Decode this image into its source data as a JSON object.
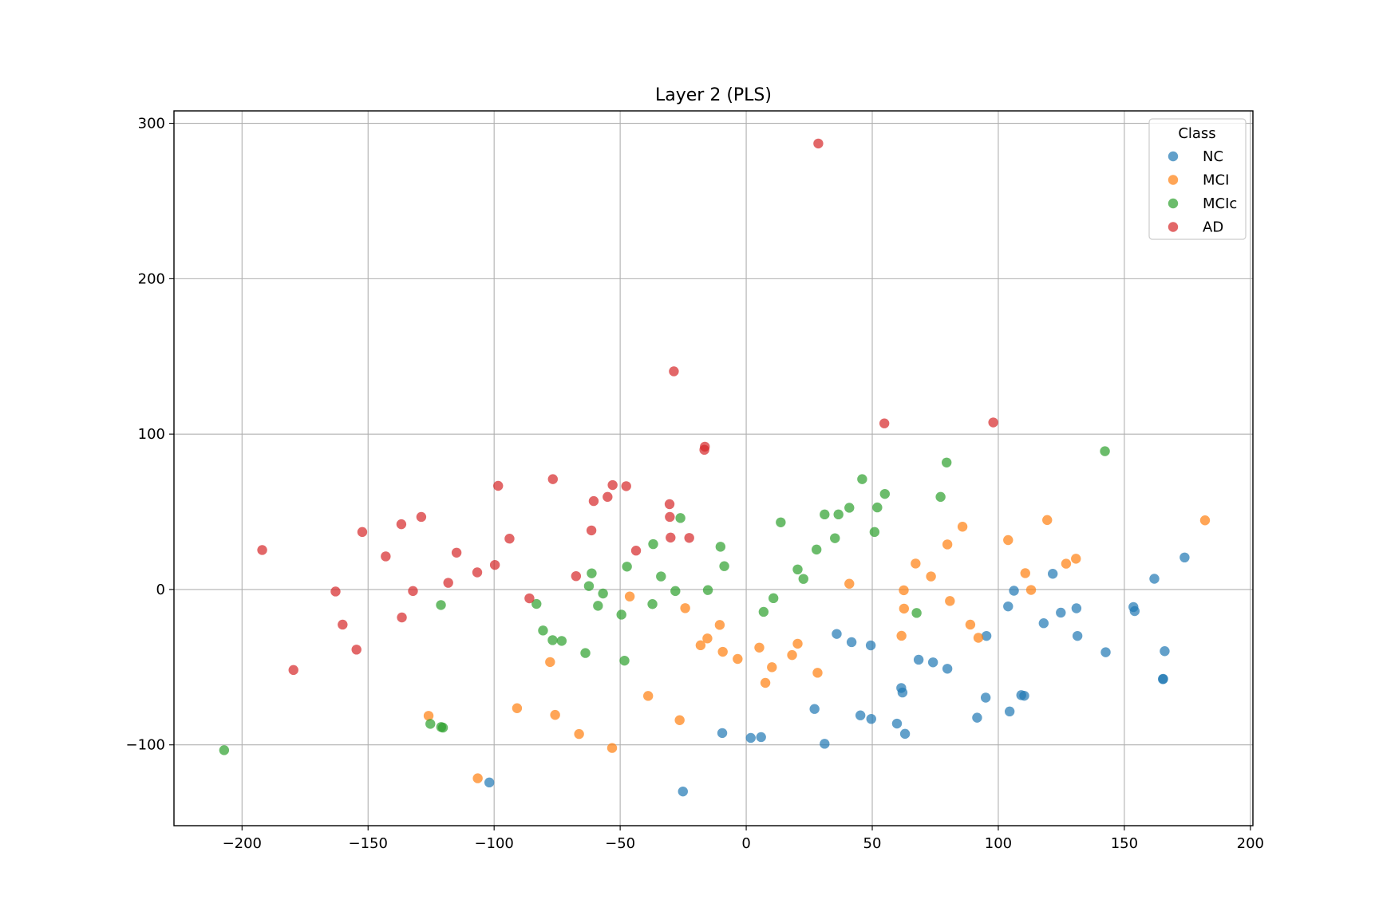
{
  "chart_data": {
    "type": "scatter",
    "title": "Layer 2 (PLS)",
    "xlabel": "",
    "ylabel": "",
    "xlim": [
      -227,
      201
    ],
    "ylim": [
      -152,
      308
    ],
    "xticks": [
      -200,
      -150,
      -100,
      -50,
      0,
      50,
      100,
      150,
      200
    ],
    "yticks": [
      -100,
      0,
      100,
      200,
      300
    ],
    "xtick_labels": [
      "−200",
      "−150",
      "−100",
      "−50",
      "0",
      "50",
      "100",
      "150",
      "200"
    ],
    "ytick_labels": [
      "−100",
      "0",
      "100",
      "200",
      "300"
    ],
    "grid": true,
    "legend": {
      "title": "Class",
      "position": "top-right"
    },
    "series": [
      {
        "name": "NC",
        "color": "#1f77b4",
        "points": [
          [
            173.9,
            20.6
          ],
          [
            161.9,
            6.9
          ],
          [
            154.1,
            -13.9
          ],
          [
            153.6,
            -11.3
          ],
          [
            166.0,
            -39.7
          ],
          [
            165.3,
            -57.7
          ],
          [
            165.4,
            -57.5
          ],
          [
            142.6,
            -40.4
          ],
          [
            121.6,
            10.1
          ],
          [
            131.0,
            -12.1
          ],
          [
            124.8,
            -14.9
          ],
          [
            131.4,
            -29.9
          ],
          [
            118.0,
            -21.7
          ],
          [
            106.2,
            -0.8
          ],
          [
            103.9,
            -10.9
          ],
          [
            95.3,
            -29.9
          ],
          [
            95.0,
            -69.6
          ],
          [
            91.6,
            -82.5
          ],
          [
            104.5,
            -78.5
          ],
          [
            109.1,
            -68.0
          ],
          [
            110.3,
            -68.4
          ],
          [
            79.8,
            -51.0
          ],
          [
            74.1,
            -46.9
          ],
          [
            68.4,
            -45.2
          ],
          [
            61.5,
            -63.4
          ],
          [
            62.0,
            -66.3
          ],
          [
            59.8,
            -86.3
          ],
          [
            63.0,
            -92.9
          ],
          [
            49.4,
            -36.0
          ],
          [
            41.8,
            -33.9
          ],
          [
            35.9,
            -28.6
          ],
          [
            45.3,
            -81.0
          ],
          [
            49.6,
            -83.3
          ],
          [
            27.1,
            -76.9
          ],
          [
            31.1,
            -99.3
          ],
          [
            1.8,
            -95.5
          ],
          [
            5.9,
            -95.0
          ],
          [
            -9.5,
            -92.4
          ],
          [
            -25.1,
            -130.0
          ],
          [
            -101.9,
            -124.2
          ]
        ]
      },
      {
        "name": "MCI",
        "color": "#ff7f0e",
        "points": [
          [
            182.0,
            44.5
          ],
          [
            119.4,
            44.7
          ],
          [
            130.8,
            19.8
          ],
          [
            126.9,
            16.6
          ],
          [
            103.9,
            31.8
          ],
          [
            110.7,
            10.5
          ],
          [
            113.0,
            -0.3
          ],
          [
            85.8,
            40.4
          ],
          [
            79.8,
            29.0
          ],
          [
            73.3,
            8.4
          ],
          [
            67.2,
            16.7
          ],
          [
            80.8,
            -7.4
          ],
          [
            88.9,
            -22.6
          ],
          [
            92.1,
            -31.1
          ],
          [
            62.5,
            -0.5
          ],
          [
            62.6,
            -12.3
          ],
          [
            61.6,
            -29.8
          ],
          [
            40.9,
            3.7
          ],
          [
            28.3,
            -53.6
          ],
          [
            20.4,
            -34.9
          ],
          [
            18.2,
            -42.2
          ],
          [
            10.2,
            -50.0
          ],
          [
            7.6,
            -60.1
          ],
          [
            5.2,
            -37.4
          ],
          [
            -3.4,
            -44.7
          ],
          [
            -9.3,
            -40.1
          ],
          [
            -10.5,
            -22.8
          ],
          [
            -15.4,
            -31.5
          ],
          [
            -18.1,
            -35.9
          ],
          [
            -24.2,
            -12.0
          ],
          [
            -26.4,
            -84.1
          ],
          [
            -38.9,
            -68.5
          ],
          [
            -46.2,
            -4.5
          ],
          [
            -53.2,
            -102.0
          ],
          [
            -66.3,
            -93.0
          ],
          [
            -75.8,
            -80.7
          ],
          [
            -77.8,
            -46.7
          ],
          [
            -90.9,
            -76.4
          ],
          [
            -106.5,
            -121.5
          ],
          [
            -126.0,
            -81.3
          ]
        ]
      },
      {
        "name": "MCIc",
        "color": "#2ca02c",
        "points": [
          [
            142.3,
            89.0
          ],
          [
            79.5,
            81.7
          ],
          [
            77.1,
            59.6
          ],
          [
            55.0,
            61.5
          ],
          [
            52.0,
            52.8
          ],
          [
            46.0,
            71.0
          ],
          [
            40.9,
            52.6
          ],
          [
            36.6,
            48.3
          ],
          [
            31.1,
            48.3
          ],
          [
            35.2,
            33.0
          ],
          [
            50.9,
            37.0
          ],
          [
            27.9,
            25.7
          ],
          [
            20.4,
            12.9
          ],
          [
            22.7,
            6.8
          ],
          [
            13.7,
            43.2
          ],
          [
            10.8,
            -5.6
          ],
          [
            6.9,
            -14.4
          ],
          [
            67.6,
            -15.1
          ],
          [
            -10.2,
            27.5
          ],
          [
            -8.7,
            15.0
          ],
          [
            -15.2,
            -0.4
          ],
          [
            -26.1,
            46.0
          ],
          [
            -28.1,
            -1.0
          ],
          [
            -33.8,
            8.4
          ],
          [
            -36.9,
            29.2
          ],
          [
            -37.2,
            -9.4
          ],
          [
            -47.3,
            14.7
          ],
          [
            -48.3,
            -45.8
          ],
          [
            -49.5,
            -16.2
          ],
          [
            -56.8,
            -2.6
          ],
          [
            -58.8,
            -10.5
          ],
          [
            -61.3,
            10.4
          ],
          [
            -62.4,
            2.2
          ],
          [
            -63.8,
            -40.9
          ],
          [
            -73.2,
            -33.1
          ],
          [
            -76.8,
            -32.6
          ],
          [
            -80.6,
            -26.4
          ],
          [
            -83.2,
            -9.3
          ],
          [
            -121.1,
            -10.0
          ],
          [
            -121.0,
            -88.5
          ],
          [
            -120.3,
            -88.9
          ],
          [
            -125.3,
            -86.5
          ],
          [
            -207.1,
            -103.4
          ]
        ]
      },
      {
        "name": "AD",
        "color": "#d62728",
        "points": [
          [
            28.6,
            287.0
          ],
          [
            -28.7,
            140.4
          ],
          [
            -16.4,
            91.9
          ],
          [
            -16.6,
            89.9
          ],
          [
            54.8,
            106.9
          ],
          [
            98.0,
            107.5
          ],
          [
            -76.7,
            71.0
          ],
          [
            -53.0,
            67.2
          ],
          [
            -47.6,
            66.5
          ],
          [
            -98.4,
            66.7
          ],
          [
            -55.0,
            59.6
          ],
          [
            -60.5,
            56.9
          ],
          [
            -30.4,
            54.9
          ],
          [
            -30.3,
            46.7
          ],
          [
            -128.9,
            46.7
          ],
          [
            -61.4,
            38.0
          ],
          [
            -30.0,
            33.4
          ],
          [
            -22.6,
            33.2
          ],
          [
            -93.9,
            32.7
          ],
          [
            -136.8,
            42.0
          ],
          [
            -152.3,
            37.0
          ],
          [
            -192.0,
            25.4
          ],
          [
            -143.0,
            21.3
          ],
          [
            -114.9,
            23.7
          ],
          [
            -43.7,
            25.0
          ],
          [
            -99.7,
            15.8
          ],
          [
            -106.7,
            11.0
          ],
          [
            -67.5,
            8.6
          ],
          [
            -118.2,
            4.3
          ],
          [
            -132.2,
            -1.0
          ],
          [
            -162.9,
            -1.3
          ],
          [
            -86.0,
            -5.7
          ],
          [
            -136.6,
            -18.0
          ],
          [
            -160.1,
            -22.6
          ],
          [
            -154.6,
            -38.7
          ],
          [
            -179.6,
            -51.8
          ]
        ]
      }
    ]
  }
}
